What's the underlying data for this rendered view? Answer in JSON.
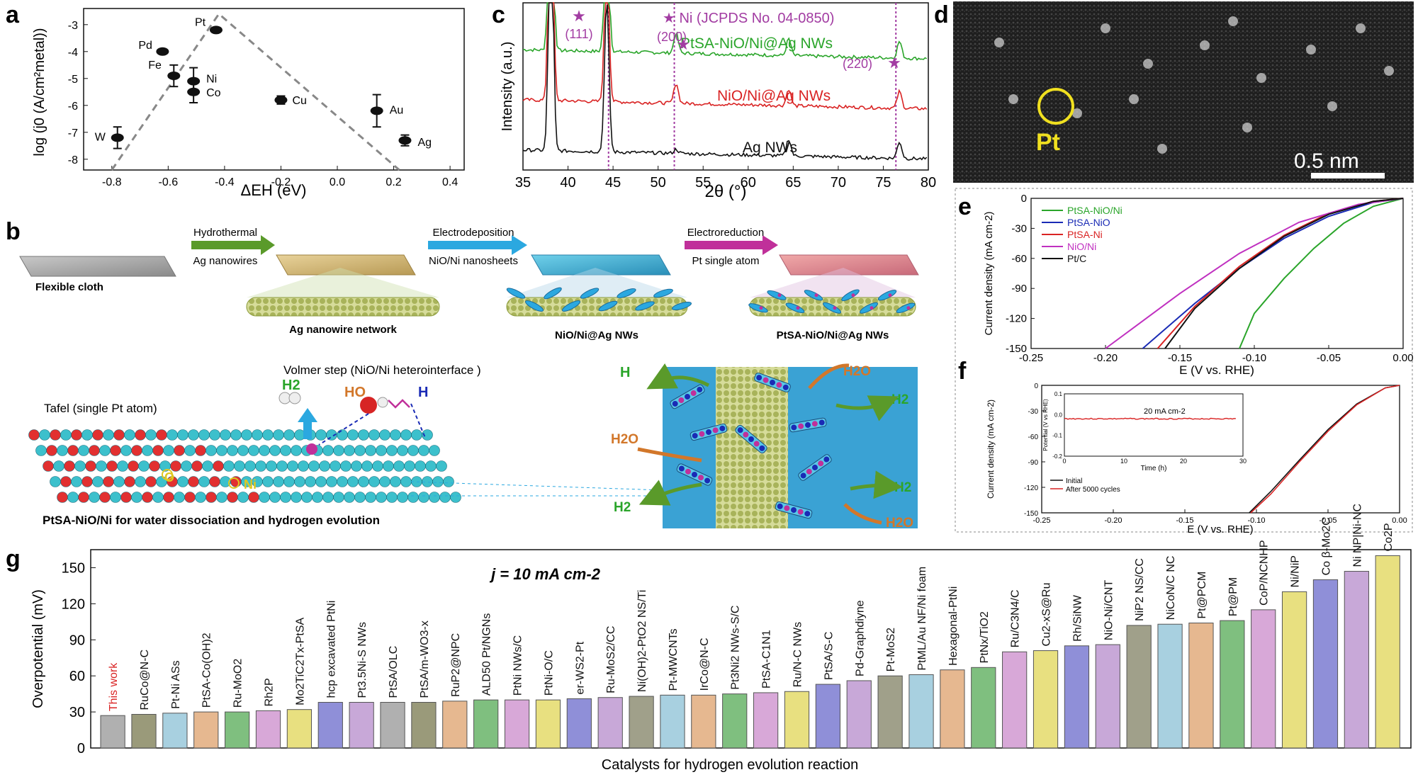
{
  "panel_labels": {
    "a": "a",
    "b": "b",
    "c": "c",
    "d": "d",
    "e": "e",
    "f": "f",
    "g": "g"
  },
  "colors": {
    "green": "#2aa52a",
    "blue": "#1a2bb5",
    "red": "#d92323",
    "magenta": "#c030c0",
    "black": "#111111",
    "star": "#a23ca2",
    "tem_text": "#f0e020",
    "arrow_green": "#5a9a2a",
    "arrow_blue": "#2ba8e0",
    "arrow_magenta": "#c0309a",
    "arrow_orange": "#d2772a"
  },
  "panel_a": {
    "ylabel": "log (j0 (A/cm²metal))",
    "xlabel": "ΔEH (eV)",
    "xticks": [
      "-0.8",
      "-0.6",
      "-0.4",
      "-0.2",
      "0.0",
      "0.2",
      "0.4"
    ],
    "yticks": [
      "-3",
      "-4",
      "-5",
      "-6",
      "-7",
      "-8"
    ]
  },
  "panel_b": {
    "step1_top": "Hydrothermal",
    "step1_bottom": "Ag nanowires",
    "step2_top": "Electrodeposition",
    "step2_bottom": "NiO/Ni nanosheets",
    "step3_top": "Electroreduction",
    "step3_bottom": "Pt single atom",
    "stage0": "Flexible cloth",
    "stage1": "Ag nanowire network",
    "stage2": "NiO/Ni@Ag NWs",
    "stage3": "PtSA-NiO/Ni@Ag NWs",
    "volmer": "Volmer step (NiO/Ni heterointerface )",
    "tafel": "Tafel (single Pt atom)",
    "h2": "H2",
    "ho": "HO",
    "h": "H",
    "o": "O",
    "ni": "Ni",
    "h2o": "H2O",
    "caption": "PtSA-NiO/Ni for water dissociation and hydrogen evolution"
  },
  "panel_c": {
    "ylabel": "Intensity (a.u.)",
    "xlabel": "2θ (°)",
    "xticks": [
      "35",
      "40",
      "45",
      "50",
      "55",
      "60",
      "65",
      "70",
      "75",
      "80"
    ],
    "legend_star": "★ Ni (JCPDS No. 04-0850)",
    "peaks": [
      "(111)",
      "(200)",
      "(220)"
    ],
    "series": [
      "PtSA-NiO/Ni@Ag NWs",
      "NiO/Ni@Ag NWs",
      "Ag NWs"
    ]
  },
  "panel_d": {
    "label": "Pt",
    "scale": "0.5 nm"
  },
  "panel_e": {
    "ylabel": "Current density (mA cm-2)",
    "xlabel": "E (V vs. RHE)",
    "xticks": [
      "-0.25",
      "-0.20",
      "-0.15",
      "-0.10",
      "-0.05",
      "0.00"
    ],
    "yticks": [
      "0",
      "-30",
      "-60",
      "-90",
      "-120",
      "-150"
    ],
    "legend": [
      "PtSA-NiO/Ni",
      "PtSA-NiO",
      "PtSA-Ni",
      "NiO/Ni",
      "Pt/C"
    ]
  },
  "panel_f": {
    "ylabel": "Current density (mA cm-2)",
    "xlabel": "E (V vs. RHE)",
    "xticks": [
      "-0.25",
      "-0.20",
      "-0.15",
      "-0.10",
      "-0.05",
      "0.00"
    ],
    "yticks": [
      "0",
      "-30",
      "-60",
      "-90",
      "-120",
      "-150"
    ],
    "legend": [
      "Initial",
      "After 5000 cycles"
    ],
    "inset_ylabel": "Potential (V vs RHE)",
    "inset_xlabel": "Time (h)",
    "inset_xticks": [
      "0",
      "10",
      "20",
      "30"
    ],
    "inset_yticks": [
      "0.1",
      "0.0",
      "-0.1",
      "-0.2"
    ],
    "inset_note": "20 mA cm-2"
  },
  "chart_data": [
    {
      "panel": "a",
      "type": "scatter",
      "title": "",
      "xlabel": "ΔEH (eV)",
      "ylabel": "log (j0 (A/cm²metal))",
      "xlim": [
        -0.9,
        0.45
      ],
      "ylim": [
        -8.4,
        -2.4
      ],
      "points": [
        {
          "label": "W",
          "x": -0.78,
          "y": -7.2,
          "err": 0.4
        },
        {
          "label": "Fe",
          "x": -0.58,
          "y": -4.9,
          "err": 0.4
        },
        {
          "label": "Pd",
          "x": -0.62,
          "y": -4.0,
          "err": 0
        },
        {
          "label": "Pt",
          "x": -0.43,
          "y": -3.2,
          "err": 0
        },
        {
          "label": "Ni",
          "x": -0.51,
          "y": -5.1,
          "err": 0.5
        },
        {
          "label": "Co",
          "x": -0.51,
          "y": -5.5,
          "err": 0.4
        },
        {
          "label": "Cu",
          "x": -0.2,
          "y": -5.8,
          "err": 0.15
        },
        {
          "label": "Au",
          "x": 0.14,
          "y": -6.2,
          "err": 0.6
        },
        {
          "label": "Ag",
          "x": 0.24,
          "y": -7.3,
          "err": 0.2
        }
      ],
      "volcano": [
        [
          -0.8,
          -8.4
        ],
        [
          -0.42,
          -2.6
        ],
        [
          0.22,
          -8.4
        ]
      ]
    },
    {
      "panel": "c",
      "type": "line",
      "title": "",
      "xlabel": "2θ (°)",
      "ylabel": "Intensity (a.u.)",
      "xlim": [
        35,
        80
      ],
      "series": [
        {
          "name": "PtSA-NiO/Ni@Ag NWs",
          "color": "#2aa52a",
          "offset": 0.72
        },
        {
          "name": "NiO/Ni@Ag NWs",
          "color": "#d92323",
          "offset": 0.42
        },
        {
          "name": "Ag NWs",
          "color": "#111111",
          "offset": 0.12
        }
      ],
      "peaks_2theta": [
        38.1,
        44.3,
        52.0,
        64.5,
        76.8
      ],
      "ni_reference": [
        44.5,
        51.8,
        76.4
      ]
    },
    {
      "panel": "e",
      "type": "line",
      "xlabel": "E (V vs. RHE)",
      "ylabel": "Current density (mA cm-2)",
      "xlim": [
        -0.25,
        0.0
      ],
      "ylim": [
        -150,
        0
      ],
      "series": [
        {
          "name": "PtSA-NiO/Ni",
          "color": "#2aa52a",
          "points": [
            [
              0,
              0
            ],
            [
              -0.02,
              -8
            ],
            [
              -0.04,
              -25
            ],
            [
              -0.06,
              -50
            ],
            [
              -0.08,
              -80
            ],
            [
              -0.1,
              -115
            ],
            [
              -0.11,
              -150
            ]
          ]
        },
        {
          "name": "PtSA-NiO",
          "color": "#1a2bb5",
          "points": [
            [
              0,
              0
            ],
            [
              -0.02,
              -4
            ],
            [
              -0.05,
              -18
            ],
            [
              -0.08,
              -40
            ],
            [
              -0.11,
              -70
            ],
            [
              -0.14,
              -105
            ],
            [
              -0.175,
              -150
            ]
          ]
        },
        {
          "name": "PtSA-Ni",
          "color": "#d92323",
          "points": [
            [
              0,
              0
            ],
            [
              -0.02,
              -3
            ],
            [
              -0.05,
              -15
            ],
            [
              -0.08,
              -37
            ],
            [
              -0.11,
              -68
            ],
            [
              -0.14,
              -108
            ],
            [
              -0.165,
              -150
            ]
          ]
        },
        {
          "name": "NiO/Ni",
          "color": "#c030c0",
          "points": [
            [
              0,
              0
            ],
            [
              -0.03,
              -6
            ],
            [
              -0.07,
              -24
            ],
            [
              -0.11,
              -55
            ],
            [
              -0.15,
              -95
            ],
            [
              -0.18,
              -128
            ],
            [
              -0.2,
              -150
            ]
          ]
        },
        {
          "name": "Pt/C",
          "color": "#111111",
          "points": [
            [
              0,
              0
            ],
            [
              -0.02,
              -3
            ],
            [
              -0.05,
              -16
            ],
            [
              -0.08,
              -38
            ],
            [
              -0.11,
              -70
            ],
            [
              -0.14,
              -110
            ],
            [
              -0.16,
              -150
            ]
          ]
        }
      ]
    },
    {
      "panel": "f",
      "type": "line",
      "xlabel": "E (V vs. RHE)",
      "ylabel": "Current density (mA cm-2)",
      "xlim": [
        -0.25,
        0.0
      ],
      "ylim": [
        -150,
        0
      ],
      "series": [
        {
          "name": "Initial",
          "color": "#111111",
          "points": [
            [
              0,
              0
            ],
            [
              -0.01,
              -3
            ],
            [
              -0.03,
              -22
            ],
            [
              -0.05,
              -52
            ],
            [
              -0.07,
              -88
            ],
            [
              -0.09,
              -125
            ],
            [
              -0.105,
              -150
            ]
          ]
        },
        {
          "name": "After 5000 cycles",
          "color": "#d92323",
          "points": [
            [
              0,
              0
            ],
            [
              -0.01,
              -3
            ],
            [
              -0.03,
              -23
            ],
            [
              -0.05,
              -54
            ],
            [
              -0.07,
              -90
            ],
            [
              -0.09,
              -128
            ],
            [
              -0.104,
              -150
            ]
          ]
        }
      ],
      "inset": {
        "xlim": [
          0,
          30
        ],
        "ylim": [
          -0.2,
          0.1
        ],
        "value": -0.02
      }
    },
    {
      "panel": "g",
      "type": "bar",
      "title": "j = 10 mA cm-2",
      "xlabel": "Catalysts for hydrogen evolution reaction",
      "ylabel": "Overpotential (mV)",
      "ylim": [
        0,
        165
      ],
      "yticks": [
        "0",
        "30",
        "60",
        "90",
        "120",
        "150"
      ],
      "categories": [
        "This work",
        "RuCo@N-C",
        "Pt-Ni ASs",
        "PtSA-Co(OH)2",
        "Ru-MoO2",
        "Rh2P",
        "Mo2TiC2Tx-PtSA",
        "hcp excavated PtNi",
        "Pt3.5Ni-S NWs",
        "PtSA/OLC",
        "PtSA/m-WO3-x",
        "RuP2@NPC",
        "ALD50 Pt/NGNs",
        "PtNi NWs/C",
        "PtNi-O/C",
        "er-WS2-Pt",
        "Ru-MoS2/CC",
        "Ni(OH)2-PtO2 NS/Ti",
        "Pt-MWCNTs",
        "IrCo@N-C",
        "Pt3Ni2 NWs-S/C",
        "PtSA-C1N1",
        "Ru/N-C NWs",
        "PtSA/S-C",
        "Pd-Graphdiyne",
        "Pt-MoS2",
        "PtML/Au NF/Ni foam",
        "Hexagonal-PtNi",
        "PtNx/TiO2",
        "Ru/C3N4/C",
        "Cu2-xS@Ru",
        "Rh/SiNW",
        "NiO-Ni/CNT",
        "NiP2 NS/CC",
        "NiCoN/C NC",
        "Pt@PCM",
        "Pt@PM",
        "CoP/NCNHP",
        "Ni/NiP",
        "Co β-Mo2C",
        "Ni NP|Ni-NC",
        "Co2P"
      ],
      "values": [
        27,
        28,
        29,
        30,
        30,
        31,
        32,
        38,
        38,
        38,
        38,
        39,
        40,
        40,
        40,
        41,
        42,
        43,
        44,
        44,
        45,
        46,
        47,
        53,
        56,
        60,
        61,
        65,
        67,
        80,
        81,
        85,
        86,
        102,
        103,
        104,
        106,
        115,
        130,
        140,
        147,
        160
      ],
      "colors": [
        "#b0b0b0",
        "#9a9a7a",
        "#a8d0e0",
        "#e6b890",
        "#7fbf7f",
        "#d8a8d8",
        "#e8e080",
        "#8f8fd8",
        "#c8a8d8",
        "#b0b0b0",
        "#9a9a7a",
        "#e6b890",
        "#7fbf7f",
        "#d8a8d8",
        "#e8e080",
        "#8f8fd8",
        "#c8a8d8",
        "#a0a08a",
        "#a8d0e0",
        "#e6b890",
        "#7fbf7f",
        "#d8a8d8",
        "#e8e080",
        "#8f8fd8",
        "#c8a8d8",
        "#a0a08a",
        "#a8d0e0",
        "#e6b890",
        "#7fbf7f",
        "#d8a8d8",
        "#e8e080",
        "#8f8fd8",
        "#c8a8d8",
        "#a0a08a",
        "#a8d0e0",
        "#e6b890",
        "#7fbf7f",
        "#d8a8d8",
        "#e8e080",
        "#8f8fd8",
        "#c8a8d8",
        "#e8e080"
      ]
    }
  ]
}
